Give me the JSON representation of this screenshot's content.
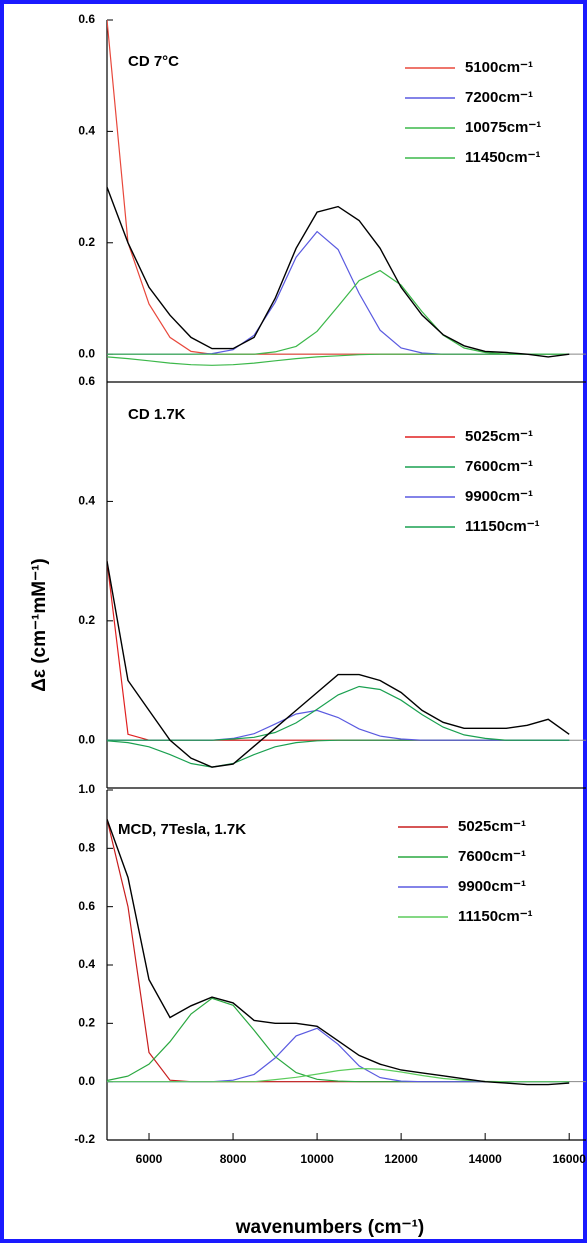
{
  "chart_data": [
    {
      "type": "line",
      "title": "CD  7°C",
      "x": [
        5000,
        5500,
        6000,
        6500,
        7000,
        7500,
        8000,
        8500,
        9000,
        9500,
        10000,
        10500,
        11000,
        11500,
        12000,
        12500,
        13000,
        13500,
        14000,
        14500,
        15000,
        15500,
        16000
      ],
      "xlim": [
        5000,
        16400
      ],
      "ylim": [
        -0.05,
        0.6
      ],
      "yticks": [
        {
          "value": 0,
          "label": "0.0"
        },
        0.2,
        0.4,
        0.6
      ],
      "series": [
        {
          "name": "5100cm⁻¹",
          "color": "#e8483c",
          "values": [
            0.6,
            0.2,
            0.09,
            0.03,
            0.005,
            0,
            0,
            0,
            0,
            0,
            0,
            0,
            0,
            0,
            0,
            0,
            0,
            0,
            0,
            0,
            0,
            0,
            0
          ]
        },
        {
          "name": "7200cm⁻¹",
          "color": "#5a5ae0",
          "values": [
            0,
            0,
            0,
            0,
            0,
            0.001,
            0.008,
            0.034,
            0.093,
            0.174,
            0.22,
            0.188,
            0.109,
            0.043,
            0.011,
            0.002,
            0,
            0,
            0,
            0,
            0,
            0,
            0
          ]
        },
        {
          "name": "10075cm⁻¹",
          "color": "#3cb84a",
          "values": [
            -0.005,
            -0.008,
            -0.012,
            -0.016,
            -0.019,
            -0.02,
            -0.019,
            -0.016,
            -0.012,
            -0.008,
            -0.005,
            -0.003,
            -0.001,
            0,
            0,
            0,
            0,
            0,
            0,
            0,
            0,
            0,
            0
          ]
        },
        {
          "name": "11450cm⁻¹",
          "color": "#3cb84a",
          "values": [
            0,
            0,
            0,
            0,
            0,
            0,
            0,
            0,
            0.004,
            0.014,
            0.041,
            0.086,
            0.132,
            0.15,
            0.124,
            0.076,
            0.034,
            0.011,
            0.003,
            0,
            0,
            0,
            0
          ]
        },
        {
          "color": "#000000",
          "values": [
            0.3,
            0.2,
            0.12,
            0.07,
            0.03,
            0.01,
            0.01,
            0.03,
            0.1,
            0.19,
            0.255,
            0.265,
            0.24,
            0.19,
            0.12,
            0.07,
            0.035,
            0.015,
            0.005,
            0.003,
            0,
            -0.005,
            0
          ]
        }
      ]
    },
    {
      "type": "line",
      "title": "CD  1.7K",
      "y_label": "Δε (cm⁻¹mM⁻¹)",
      "x": [
        5000,
        5500,
        6000,
        6500,
        7000,
        7500,
        8000,
        8500,
        9000,
        9500,
        10000,
        10500,
        11000,
        11500,
        12000,
        12500,
        13000,
        13500,
        14000,
        14500,
        15000,
        15500,
        16000
      ],
      "xlim": [
        5000,
        16400
      ],
      "ylim": [
        -0.08,
        0.6
      ],
      "yticks": [
        {
          "value": 0,
          "label": "0.0"
        },
        0.2,
        0.4,
        0.6
      ],
      "series": [
        {
          "name": "5025cm⁻¹",
          "color": "#e02020",
          "values": [
            0.3,
            0.01,
            0,
            0,
            0,
            0,
            0,
            0,
            0,
            0,
            0,
            0,
            0,
            0,
            0,
            0,
            0,
            0,
            0,
            0,
            0,
            0,
            0
          ]
        },
        {
          "name": "7600cm⁻¹",
          "color": "#1aa050",
          "values": [
            -0.001,
            -0.004,
            -0.011,
            -0.024,
            -0.039,
            -0.045,
            -0.039,
            -0.024,
            -0.011,
            -0.004,
            -0.001,
            0,
            0,
            0,
            0,
            0,
            0,
            0,
            0,
            0,
            0,
            0,
            0
          ]
        },
        {
          "name": "9900cm⁻¹",
          "color": "#5a5ae0",
          "values": [
            0,
            0,
            0,
            0,
            0,
            0,
            0.003,
            0.011,
            0.027,
            0.044,
            0.05,
            0.038,
            0.019,
            0.007,
            0.002,
            0,
            0,
            0,
            0,
            0,
            0,
            0,
            0
          ]
        },
        {
          "name": "11150cm⁻¹",
          "color": "#1aa050",
          "values": [
            0,
            0,
            0,
            0,
            0,
            0,
            0.002,
            0.005,
            0.013,
            0.029,
            0.052,
            0.076,
            0.09,
            0.085,
            0.067,
            0.043,
            0.022,
            0.009,
            0.003,
            0,
            0,
            0,
            0
          ]
        },
        {
          "color": "#000000",
          "values": [
            0.3,
            0.1,
            0.05,
            0,
            -0.03,
            -0.045,
            -0.04,
            -0.01,
            0.02,
            0.05,
            0.08,
            0.11,
            0.11,
            0.1,
            0.08,
            0.05,
            0.03,
            0.02,
            0.02,
            0.02,
            0.025,
            0.035,
            0.01
          ]
        }
      ]
    },
    {
      "type": "line",
      "title": "MCD, 7Tesla, 1.7K",
      "x_label": "wavenumbers (cm⁻¹)",
      "x": [
        5000,
        5500,
        6000,
        6500,
        7000,
        7500,
        8000,
        8500,
        9000,
        9500,
        10000,
        10500,
        11000,
        11500,
        12000,
        12500,
        13000,
        13500,
        14000,
        14500,
        15000,
        15500,
        16000
      ],
      "xlim": [
        5000,
        16400
      ],
      "xticks": [
        6000,
        8000,
        10000,
        12000,
        14000,
        16000
      ],
      "ylim": [
        -0.2,
        1.0
      ],
      "yticks": [
        -0.2,
        {
          "value": 0,
          "label": "0.0"
        },
        0.2,
        0.4,
        0.6,
        0.8,
        {
          "value": 1,
          "label": "1.0"
        }
      ],
      "series": [
        {
          "name": "5025cm⁻¹",
          "color": "#c81e1e",
          "values": [
            0.9,
            0.6,
            0.1,
            0.005,
            0,
            0,
            0,
            0,
            0,
            0,
            0,
            0,
            0,
            0,
            0,
            0,
            0,
            0,
            0,
            0,
            0,
            0,
            0
          ]
        },
        {
          "name": "7600cm⁻¹",
          "color": "#2aa840",
          "values": [
            0.004,
            0.019,
            0.06,
            0.137,
            0.232,
            0.286,
            0.262,
            0.176,
            0.086,
            0.031,
            0.008,
            0.002,
            0,
            0,
            0,
            0,
            0,
            0,
            0,
            0,
            0,
            0,
            0
          ]
        },
        {
          "name": "9900cm⁻¹",
          "color": "#5a5ae0",
          "values": [
            0,
            0,
            0,
            0,
            0,
            0,
            0.005,
            0.025,
            0.081,
            0.157,
            0.183,
            0.128,
            0.054,
            0.014,
            0.002,
            0,
            0,
            0,
            0,
            0,
            0,
            0,
            0
          ]
        },
        {
          "name": "11150cm⁻¹",
          "color": "#5ccc5c",
          "values": [
            0,
            0,
            0,
            0,
            0,
            0,
            0,
            0,
            0.007,
            0.015,
            0.026,
            0.038,
            0.045,
            0.043,
            0.033,
            0.021,
            0.011,
            0.005,
            0.001,
            0,
            0,
            0,
            0
          ]
        },
        {
          "color": "#000000",
          "values": [
            0.9,
            0.7,
            0.35,
            0.22,
            0.26,
            0.29,
            0.27,
            0.21,
            0.2,
            0.2,
            0.19,
            0.14,
            0.09,
            0.06,
            0.04,
            0.03,
            0.02,
            0.01,
            0,
            -0.005,
            -0.01,
            -0.01,
            -0.005
          ]
        }
      ]
    }
  ]
}
